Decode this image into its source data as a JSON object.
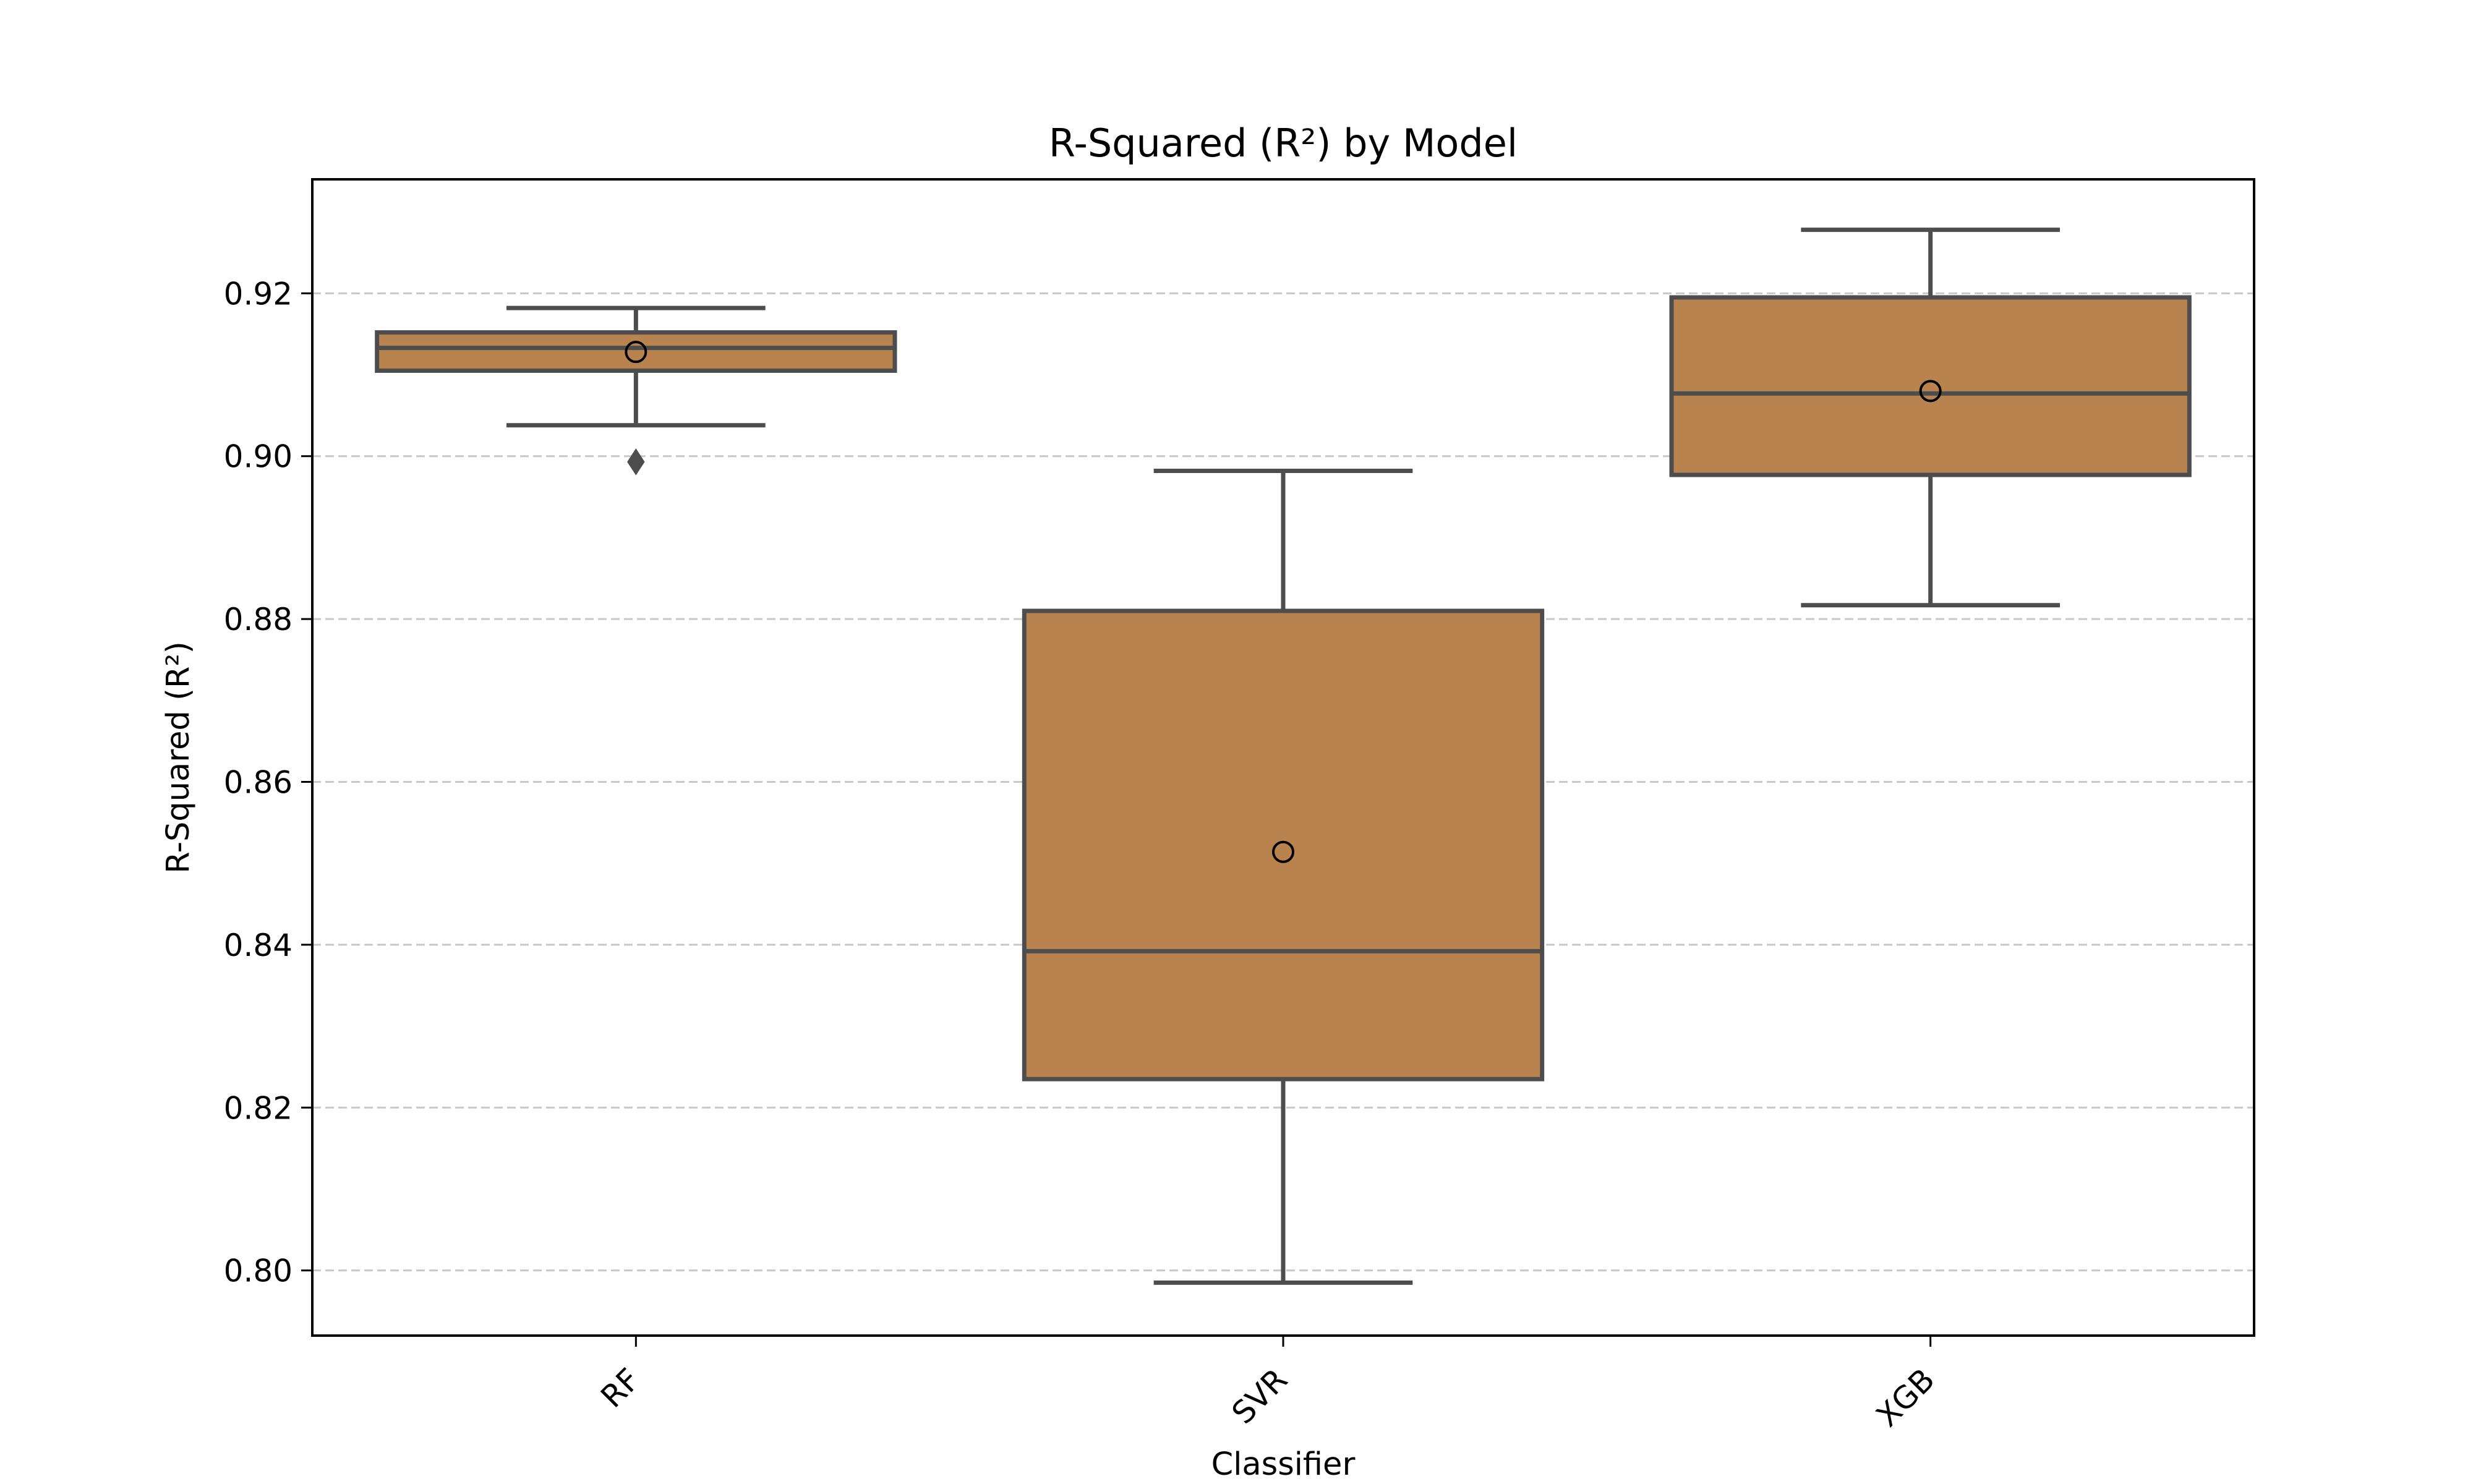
{
  "chart_data": {
    "type": "box",
    "title": "R-Squared (R²) by Model",
    "xlabel": "Classifier",
    "ylabel": "R-Squared (R²)",
    "ylim": [
      0.792,
      0.934
    ],
    "yticks": [
      "0.80",
      "0.82",
      "0.84",
      "0.86",
      "0.88",
      "0.90",
      "0.92"
    ],
    "grid": "y-dashed",
    "box_color": "#b9834f",
    "line_color": "#4d4d4d",
    "categories": [
      "RF",
      "SVR",
      "XGB"
    ],
    "boxes": [
      {
        "category": "RF",
        "whisker_low": 0.9038,
        "q1": 0.9105,
        "median": 0.9133,
        "q3": 0.9152,
        "whisker_high": 0.9182,
        "mean": 0.9128,
        "outliers": [
          0.8993
        ]
      },
      {
        "category": "SVR",
        "whisker_low": 0.7985,
        "q1": 0.8235,
        "median": 0.8392,
        "q3": 0.881,
        "whisker_high": 0.8982,
        "mean": 0.8514,
        "outliers": []
      },
      {
        "category": "XGB",
        "whisker_low": 0.8817,
        "q1": 0.8977,
        "median": 0.9077,
        "q3": 0.9195,
        "whisker_high": 0.9278,
        "mean": 0.908,
        "outliers": []
      }
    ]
  }
}
